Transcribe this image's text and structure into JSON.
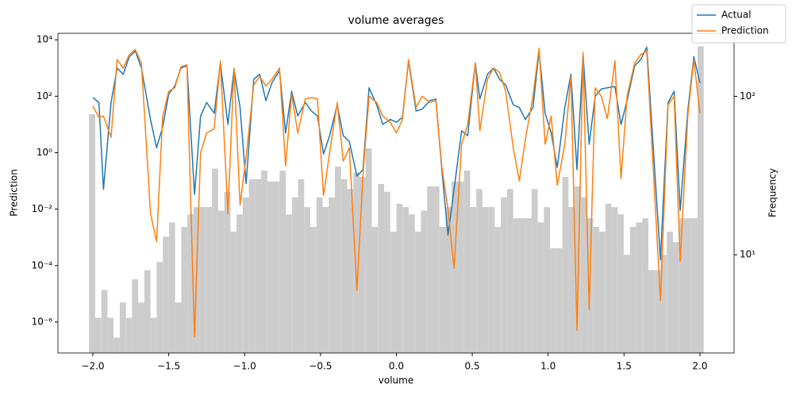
{
  "chart_data": {
    "type": "line",
    "title": "volume averages",
    "xlabel": "volume",
    "ylabel": "Prediction",
    "y2label": "Frequency",
    "legend": "upper right",
    "ylog": true,
    "y2log": true,
    "xlim": [
      -2.23,
      2.225
    ],
    "ylim": [
      8e-08,
      17000
    ],
    "y2lim": [
      2.4,
      250
    ],
    "xticks": [
      {
        "value": -2,
        "label": "−2.0"
      },
      {
        "value": -1.5,
        "label": "−1.5"
      },
      {
        "value": -1,
        "label": "−1.0"
      },
      {
        "value": -0.5,
        "label": "−0.5"
      },
      {
        "value": 0,
        "label": "0.0"
      },
      0.5,
      {
        "value": 1,
        "label": "1.0"
      },
      1.5,
      {
        "value": 2,
        "label": "2.0"
      }
    ],
    "yticks": [
      {
        "value": 1e-06,
        "label": "10⁻⁶"
      },
      {
        "value": 0.0001,
        "label": "10⁻⁴"
      },
      {
        "value": 0.01,
        "label": "10⁻²"
      },
      {
        "value": 1,
        "label": "10⁰"
      },
      {
        "value": 100,
        "label": "10²"
      },
      {
        "value": 10000,
        "label": "10⁴"
      }
    ],
    "y2ticks": [
      {
        "value": 10,
        "label": "10¹"
      },
      {
        "value": 100,
        "label": "10²"
      }
    ],
    "histogram": {
      "color": "#cccccc",
      "axis": "y2",
      "bins": [
        -2.025,
        -1.9845,
        -1.944,
        -1.9035,
        -1.863,
        -1.8225,
        -1.782,
        -1.7415,
        -1.701,
        -1.6605,
        -1.62,
        -1.5795,
        -1.539,
        -1.4985,
        -1.458,
        -1.4175,
        -1.377,
        -1.3365,
        -1.296,
        -1.2555,
        -1.215,
        -1.1745,
        -1.134,
        -1.0935,
        -1.053,
        -1.0125,
        -0.972,
        -0.9315,
        -0.891,
        -0.8505,
        -0.81,
        -0.7695,
        -0.729,
        -0.6885,
        -0.648,
        -0.6075,
        -0.567,
        -0.5265,
        -0.486,
        -0.4455,
        -0.405,
        -0.3645,
        -0.324,
        -0.2835,
        -0.243,
        -0.2025,
        -0.162,
        -0.1215,
        -0.081,
        -0.0405,
        0,
        0.0405,
        0.081,
        0.1215,
        0.162,
        0.2025,
        0.243,
        0.2835,
        0.324,
        0.3645,
        0.405,
        0.4455,
        0.486,
        0.5265,
        0.567,
        0.6075,
        0.648,
        0.6885,
        0.729,
        0.7695,
        0.81,
        0.8505,
        0.891,
        0.9315,
        0.972,
        1.0125,
        1.053,
        1.0935,
        1.134,
        1.1745,
        1.215,
        1.2555,
        1.296,
        1.3365,
        1.377,
        1.4175,
        1.458,
        1.4985,
        1.539,
        1.5795,
        1.62,
        1.6605,
        1.701,
        1.7415,
        1.782,
        1.8225,
        1.863,
        1.9035,
        1.944,
        1.9845,
        2.025
      ],
      "counts": [
        77,
        4,
        6,
        4,
        3,
        5,
        4,
        7,
        5,
        8,
        4,
        9,
        13,
        16,
        5,
        15,
        18,
        20,
        20,
        20,
        35,
        19,
        25,
        14,
        18,
        23,
        30,
        30,
        34,
        29,
        29,
        34,
        18,
        23,
        30,
        20,
        15,
        23,
        20,
        23,
        36,
        30,
        26,
        33,
        31,
        47,
        15,
        28,
        25,
        14,
        21,
        20,
        18,
        14,
        19,
        27,
        27,
        15,
        20,
        29,
        29,
        34,
        20,
        26,
        20,
        20,
        15,
        23,
        26,
        17,
        17,
        17,
        26,
        16,
        20,
        11,
        11,
        31,
        20,
        27,
        23,
        17,
        15,
        14,
        21,
        20,
        18,
        10,
        15,
        16,
        17,
        8,
        8,
        10,
        14,
        12,
        17,
        17,
        17,
        207
      ]
    },
    "x": [
      -2.0,
      -1.96,
      -1.93,
      -1.88,
      -1.84,
      -1.8,
      -1.76,
      -1.72,
      -1.68,
      -1.62,
      -1.58,
      -1.54,
      -1.5,
      -1.46,
      -1.42,
      -1.38,
      -1.33,
      -1.29,
      -1.25,
      -1.2,
      -1.16,
      -1.11,
      -1.07,
      -1.03,
      -0.99,
      -0.94,
      -0.9,
      -0.86,
      -0.82,
      -0.77,
      -0.73,
      -0.69,
      -0.65,
      -0.6,
      -0.56,
      -0.52,
      -0.48,
      -0.44,
      -0.39,
      -0.35,
      -0.31,
      -0.26,
      -0.22,
      -0.18,
      -0.13,
      -0.09,
      -0.04,
      0.0,
      0.04,
      0.08,
      0.13,
      0.17,
      0.22,
      0.26,
      0.3,
      0.34,
      0.38,
      0.43,
      0.47,
      0.52,
      0.55,
      0.6,
      0.64,
      0.68,
      0.72,
      0.77,
      0.81,
      0.85,
      0.9,
      0.94,
      0.98,
      1.02,
      1.06,
      1.11,
      1.15,
      1.19,
      1.23,
      1.27,
      1.31,
      1.35,
      1.39,
      1.44,
      1.48,
      1.52,
      1.57,
      1.61,
      1.65,
      1.74,
      1.79,
      1.83,
      1.87,
      1.92,
      1.96,
      2.0
    ],
    "series": [
      {
        "name": "Actual",
        "color": "#1f77b4",
        "values": [
          90,
          60,
          0.05,
          60,
          1000,
          600,
          2500,
          4000,
          1000,
          15,
          1.5,
          8,
          120,
          230,
          1000,
          1200,
          0.033,
          20,
          60,
          25,
          1500,
          10,
          900,
          40,
          0.08,
          400,
          600,
          70,
          300,
          800,
          5,
          150,
          20,
          60,
          30,
          20,
          0.9,
          4,
          50,
          4,
          2.5,
          0.15,
          0.25,
          200,
          50,
          10,
          15,
          12,
          18,
          1800,
          30,
          35,
          70,
          80,
          0.23,
          0.0012,
          0.05,
          6,
          4,
          1500,
          80,
          600,
          1000,
          400,
          250,
          50,
          40,
          15,
          40,
          4000,
          25,
          5,
          0.3,
          40,
          600,
          0.25,
          3000,
          2,
          100,
          180,
          200,
          220,
          10,
          70,
          1200,
          2000,
          5500,
          0.00016,
          60,
          150,
          0.009,
          30,
          2500,
          300
        ]
      },
      {
        "name": "Prediction",
        "color": "#ff7f0e",
        "values": [
          45,
          18,
          20,
          3.5,
          2000,
          1000,
          3000,
          4500,
          1500,
          0.007,
          0.0007,
          19,
          150,
          200,
          1100,
          1300,
          3e-07,
          1,
          5,
          7,
          1800,
          0.007,
          1000,
          0.014,
          0.7,
          250,
          500,
          230,
          400,
          1000,
          0.34,
          120,
          5,
          80,
          90,
          80,
          0.03,
          1,
          60,
          0.5,
          1.5,
          1.3e-05,
          0.17,
          100,
          60,
          20,
          12,
          5,
          15,
          2000,
          40,
          100,
          60,
          70,
          0.3,
          0.01,
          8e-05,
          2,
          10,
          1500,
          6,
          400,
          1000,
          700,
          150,
          1.5,
          0.1,
          3,
          100,
          5000,
          2,
          20,
          0.07,
          2,
          500,
          5e-07,
          3500,
          2.8e-06,
          200,
          100,
          16,
          1800,
          0.12,
          100,
          1500,
          3000,
          4000,
          5.8e-06,
          50,
          100,
          0.00014,
          20,
          2000,
          25
        ]
      }
    ]
  }
}
